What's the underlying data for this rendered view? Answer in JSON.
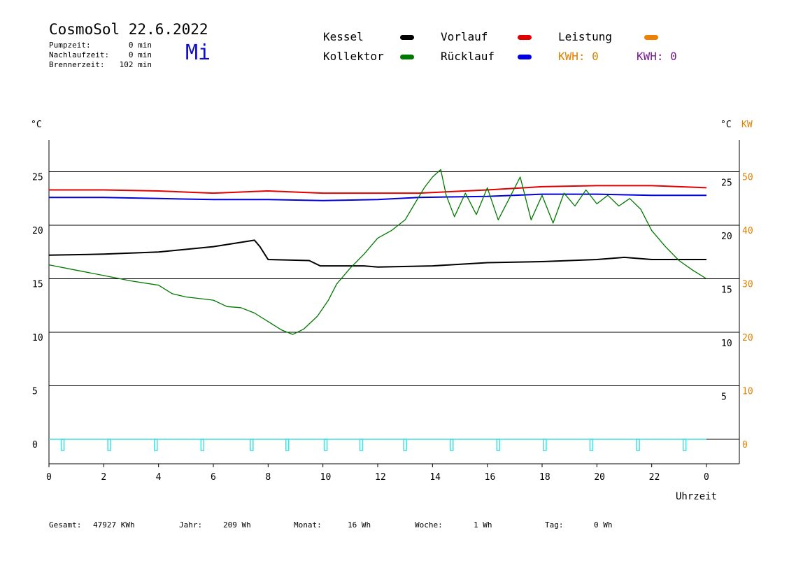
{
  "header": {
    "title": "CosmoSol 22.6.2022",
    "weekday": "Mi",
    "stats": [
      {
        "label": "Pumpzeit:",
        "value": "0 min"
      },
      {
        "label": "Nachlaufzeit:",
        "value": "0 min"
      },
      {
        "label": "Brennerzeit:",
        "value": "102 min"
      }
    ]
  },
  "legend": {
    "kessel": "Kessel",
    "kollektor": "Kollektor",
    "vorlauf": "Vorlauf",
    "ruecklauf": "Rücklauf",
    "leistung": "Leistung",
    "kwh_orange": "KWH: 0",
    "kwh_purple": "KWH: 0"
  },
  "colors": {
    "kessel": "#000000",
    "kollektor": "#007800",
    "vorlauf": "#e00000",
    "ruecklauf": "#0000e0",
    "leistung": "#f08000",
    "kwh_purple": "#7a1a9a",
    "pump": "#40e0e0",
    "axis_kw": "#e08000"
  },
  "footer": [
    {
      "label": "Gesamt:",
      "value": "47927 KWh"
    },
    {
      "label": "Jahr:",
      "value": "209 Wh"
    },
    {
      "label": "Monat:",
      "value": "16 Wh"
    },
    {
      "label": "Woche:",
      "value": "1 Wh"
    },
    {
      "label": "Tag:",
      "value": "0 Wh"
    }
  ],
  "chart_data": {
    "type": "line",
    "xlabel": "Uhrzeit",
    "ylabel_left": "°C",
    "ylabel_right": "°C",
    "ylabel_right2": "KW",
    "xlim": [
      0,
      24
    ],
    "ylim": [
      -1.5,
      28
    ],
    "x_ticks": [
      "0",
      "2",
      "4",
      "6",
      "8",
      "10",
      "12",
      "14",
      "16",
      "18",
      "20",
      "22",
      "0"
    ],
    "y_ticks_left": [
      0,
      5,
      10,
      15,
      20,
      25
    ],
    "y_ticks_right": [
      5,
      10,
      15,
      20,
      25
    ],
    "y_ticks_kw": [
      0,
      10,
      20,
      30,
      40,
      50
    ],
    "grid": "horizontal",
    "series": [
      {
        "name": "Vorlauf",
        "key": "vorlauf",
        "x": [
          0,
          2,
          4,
          6,
          8,
          10,
          12,
          13.5,
          16,
          18,
          20,
          22,
          24
        ],
        "y": [
          23.3,
          23.3,
          23.2,
          23.0,
          23.2,
          23.0,
          23.0,
          23.0,
          23.3,
          23.6,
          23.7,
          23.7,
          23.5
        ]
      },
      {
        "name": "Rücklauf",
        "key": "ruecklauf",
        "x": [
          0,
          2,
          4,
          6,
          8,
          10,
          12,
          13.5,
          16,
          18,
          20,
          22,
          24
        ],
        "y": [
          22.6,
          22.6,
          22.5,
          22.4,
          22.4,
          22.3,
          22.4,
          22.6,
          22.7,
          22.9,
          22.9,
          22.8,
          22.8
        ]
      },
      {
        "name": "Kessel",
        "key": "kessel",
        "x": [
          0,
          2,
          4,
          6,
          7.5,
          7.7,
          8,
          9.5,
          9.9,
          11.5,
          12,
          14,
          16,
          18,
          20,
          21,
          22,
          24
        ],
        "y": [
          17.2,
          17.3,
          17.5,
          18.0,
          18.6,
          18.0,
          16.8,
          16.7,
          16.2,
          16.2,
          16.1,
          16.2,
          16.5,
          16.6,
          16.8,
          17.0,
          16.8,
          16.8
        ]
      },
      {
        "name": "Kollektor",
        "key": "kollektor",
        "x": [
          0,
          1,
          2,
          3,
          4,
          4.5,
          5,
          6,
          6.5,
          7,
          7.5,
          8,
          8.5,
          8.9,
          9.3,
          9.8,
          10.2,
          10.5,
          11,
          11.5,
          12,
          12.5,
          13,
          13.3,
          13.7,
          14,
          14.3,
          14.5,
          14.8,
          15.2,
          15.6,
          16,
          16.4,
          16.8,
          17.2,
          17.6,
          18,
          18.4,
          18.8,
          19.2,
          19.6,
          20,
          20.4,
          20.8,
          21.2,
          21.6,
          22,
          22.5,
          23,
          23.5,
          24
        ],
        "y": [
          16.3,
          15.8,
          15.3,
          14.8,
          14.4,
          13.6,
          13.3,
          13.0,
          12.4,
          12.3,
          11.8,
          11.0,
          10.2,
          9.8,
          10.3,
          11.5,
          13.0,
          14.5,
          16.0,
          17.3,
          18.8,
          19.5,
          20.5,
          21.8,
          23.5,
          24.5,
          25.2,
          22.8,
          20.8,
          23.0,
          21.0,
          23.5,
          20.5,
          22.5,
          24.5,
          20.5,
          22.8,
          20.2,
          23.0,
          21.8,
          23.3,
          22.0,
          22.8,
          21.8,
          22.5,
          21.5,
          19.5,
          18.0,
          16.7,
          15.8,
          15.0
        ]
      }
    ],
    "pump_pulses_x": [
      0.5,
      2.2,
      3.9,
      5.6,
      7.4,
      8.7,
      10.1,
      11.4,
      13.0,
      14.7,
      16.4,
      18.1,
      19.8,
      21.5,
      23.2
    ]
  }
}
